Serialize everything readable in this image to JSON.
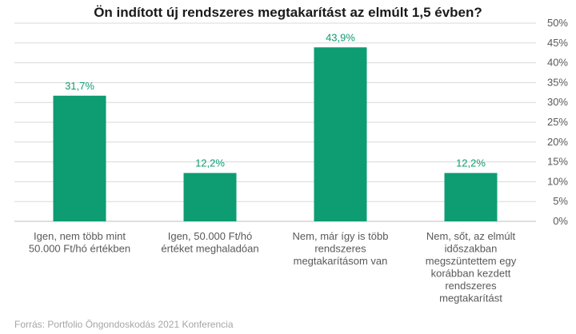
{
  "chart_data": {
    "type": "bar",
    "title": "Ön indított új rendszeres megtakarítást az elmúlt 1,5 évben?",
    "categories": [
      [
        "Igen, nem több mint",
        "50.000 Ft/hó értékben"
      ],
      [
        "Igen, 50.000 Ft/hó",
        "értéket meghaladóan"
      ],
      [
        "Nem, már így is több",
        "rendszeres",
        "megtakarításom van"
      ],
      [
        "Nem, sőt, az elmúlt",
        "időszakban",
        "megszüntettem egy",
        "korábban kezdett",
        "rendszeres",
        "megtakarítást"
      ]
    ],
    "values": [
      31.7,
      12.2,
      43.9,
      12.2
    ],
    "value_labels": [
      "31,7%",
      "12,2%",
      "43,9%",
      "12,2%"
    ],
    "ylim": [
      0,
      50
    ],
    "y_ticks": [
      "0%",
      "5%",
      "10%",
      "15%",
      "20%",
      "25%",
      "30%",
      "35%",
      "40%",
      "45%",
      "50%"
    ],
    "y_axis_side": "right",
    "grid": true,
    "colors": {
      "bar": "#0e9c72",
      "value_label": "#0e9c72",
      "grid": "#d9d9d9",
      "text": "#595959"
    }
  },
  "source": "Forrás: Portfolio Öngondoskodás 2021 Konferencia"
}
